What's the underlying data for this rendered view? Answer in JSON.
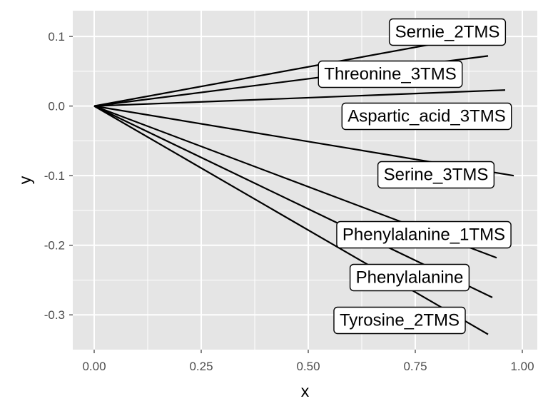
{
  "chart_data": {
    "type": "line",
    "title": "",
    "xlabel": "x",
    "ylabel": "y",
    "xlim": [
      -0.05,
      1.035
    ],
    "ylim": [
      -0.35,
      0.137
    ],
    "x_ticks": [
      0.0,
      0.25,
      0.5,
      0.75,
      1.0
    ],
    "x_tick_labels": [
      "0.00",
      "0.25",
      "0.50",
      "0.75",
      "1.00"
    ],
    "y_ticks": [
      -0.3,
      -0.2,
      -0.1,
      0.0,
      0.1
    ],
    "y_tick_labels": [
      "-0.3",
      "-0.2",
      "-0.1",
      "0.0",
      "0.1"
    ],
    "grid": true,
    "background": "#e5e5e5",
    "grid_color": "#ffffff",
    "line_color": "#000000",
    "segments": [
      {
        "label": "Sernie_2TMS",
        "x_start": 0.0,
        "y_start": 0.0,
        "x_end": 0.87,
        "y_end": 0.098
      },
      {
        "label": "Threonine_3TMS",
        "x_start": 0.0,
        "y_start": 0.0,
        "x_end": 0.92,
        "y_end": 0.072
      },
      {
        "label": "Aspartic_acid_3TMS",
        "x_start": 0.0,
        "y_start": 0.0,
        "x_end": 0.96,
        "y_end": 0.023
      },
      {
        "label": "Serine_3TMS",
        "x_start": 0.0,
        "y_start": 0.0,
        "x_end": 0.98,
        "y_end": -0.1
      },
      {
        "label": "Phenylalanine_1TMS",
        "x_start": 0.0,
        "y_start": 0.0,
        "x_end": 0.94,
        "y_end": -0.218
      },
      {
        "label": "Phenylalanine",
        "x_start": 0.0,
        "y_start": 0.0,
        "x_end": 0.93,
        "y_end": -0.275
      },
      {
        "label": "Tyrosine_2TMS",
        "x_start": 0.0,
        "y_start": 0.0,
        "x_end": 0.92,
        "y_end": -0.328
      }
    ]
  }
}
